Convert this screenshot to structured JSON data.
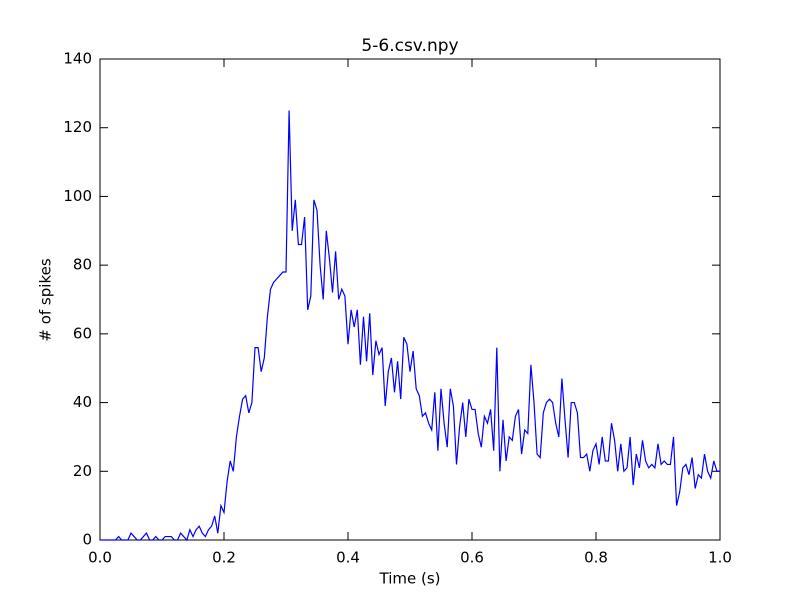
{
  "chart_data": {
    "type": "line",
    "title": "5-6.csv.npy",
    "xlabel": "Time (s)",
    "ylabel": "# of spikes",
    "x": [
      0,
      0.005,
      0.01,
      0.015,
      0.02,
      0.025,
      0.03,
      0.035,
      0.04,
      0.045,
      0.05,
      0.055,
      0.06,
      0.065,
      0.07,
      0.075,
      0.08,
      0.085,
      0.09,
      0.095,
      0.1,
      0.105,
      0.11,
      0.115,
      0.12,
      0.125,
      0.13,
      0.135,
      0.14,
      0.145,
      0.15,
      0.155,
      0.16,
      0.165,
      0.17,
      0.175,
      0.18,
      0.185,
      0.19,
      0.195,
      0.2,
      0.205,
      0.21,
      0.215,
      0.22,
      0.225,
      0.23,
      0.235,
      0.24,
      0.245,
      0.25,
      0.255,
      0.26,
      0.265,
      0.27,
      0.275,
      0.28,
      0.285,
      0.29,
      0.295,
      0.3,
      0.305,
      0.31,
      0.315,
      0.32,
      0.325,
      0.33,
      0.335,
      0.34,
      0.345,
      0.35,
      0.355,
      0.36,
      0.365,
      0.37,
      0.375,
      0.38,
      0.385,
      0.39,
      0.395,
      0.4,
      0.405,
      0.41,
      0.415,
      0.42,
      0.425,
      0.43,
      0.435,
      0.44,
      0.445,
      0.45,
      0.455,
      0.46,
      0.465,
      0.47,
      0.475,
      0.48,
      0.485,
      0.49,
      0.495,
      0.5,
      0.505,
      0.51,
      0.515,
      0.52,
      0.525,
      0.53,
      0.535,
      0.54,
      0.545,
      0.55,
      0.555,
      0.56,
      0.565,
      0.57,
      0.575,
      0.58,
      0.585,
      0.59,
      0.595,
      0.6,
      0.605,
      0.61,
      0.615,
      0.62,
      0.625,
      0.63,
      0.635,
      0.64,
      0.645,
      0.65,
      0.655,
      0.66,
      0.665,
      0.67,
      0.675,
      0.68,
      0.685,
      0.69,
      0.695,
      0.7,
      0.705,
      0.71,
      0.715,
      0.72,
      0.725,
      0.73,
      0.735,
      0.74,
      0.745,
      0.75,
      0.755,
      0.76,
      0.765,
      0.77,
      0.775,
      0.78,
      0.785,
      0.79,
      0.795,
      0.8,
      0.805,
      0.81,
      0.815,
      0.82,
      0.825,
      0.83,
      0.835,
      0.84,
      0.845,
      0.85,
      0.855,
      0.86,
      0.865,
      0.87,
      0.875,
      0.88,
      0.885,
      0.89,
      0.895,
      0.9,
      0.905,
      0.91,
      0.915,
      0.92,
      0.925,
      0.93,
      0.935,
      0.94,
      0.945,
      0.95,
      0.955,
      0.96,
      0.965,
      0.97,
      0.975,
      0.98,
      0.985,
      0.99,
      0.995,
      1
    ],
    "series": [
      {
        "color": "#0000ff",
        "values": [
          0,
          0,
          0,
          0,
          0,
          0,
          1,
          0,
          0,
          0,
          2,
          1,
          0,
          0,
          1,
          2,
          0,
          0,
          1,
          0,
          0,
          1,
          1,
          1,
          0,
          0,
          2,
          1,
          0,
          3,
          1,
          3,
          4,
          2,
          1,
          3,
          4,
          7,
          2,
          10,
          8,
          17,
          23,
          20,
          30,
          36,
          41,
          42,
          37,
          40,
          56,
          56,
          49,
          53,
          65,
          73,
          75,
          76,
          77,
          78,
          78,
          125,
          90,
          99,
          86,
          86,
          94,
          67,
          71,
          99,
          96,
          80,
          70,
          90,
          82,
          72,
          84,
          70,
          73,
          71,
          57,
          67,
          62,
          67,
          51,
          65,
          52,
          66,
          48,
          58,
          54,
          56,
          39,
          49,
          53,
          43,
          52,
          41,
          59,
          57,
          49,
          55,
          44,
          42,
          36,
          37,
          34,
          32,
          43,
          26,
          44,
          34,
          27,
          44,
          39,
          22,
          33,
          40,
          30,
          41,
          38,
          38,
          31,
          27,
          36,
          34,
          38,
          26,
          56,
          20,
          35,
          23,
          30,
          29,
          36,
          38,
          25,
          32,
          31,
          51,
          40,
          25,
          24,
          37,
          40,
          41,
          40,
          34,
          30,
          47,
          35,
          24,
          40,
          40,
          37,
          24,
          24,
          25,
          20,
          26,
          28,
          22,
          30,
          23,
          23,
          34,
          29,
          20,
          28,
          20,
          21,
          30,
          16,
          25,
          21,
          29,
          23,
          21,
          22,
          21,
          28,
          22,
          23,
          22,
          22,
          30,
          10,
          14,
          21,
          22,
          19,
          24,
          15,
          19,
          18,
          25,
          20,
          18,
          23,
          20,
          20
        ]
      }
    ],
    "xlim": [
      0,
      1
    ],
    "xticks": [
      {
        "value": 0,
        "label": "0.0"
      },
      0.2,
      0.4,
      0.6,
      0.8,
      {
        "value": 1,
        "label": "1.0"
      }
    ],
    "ylim": [
      0,
      140
    ],
    "yticks": [
      0,
      20,
      40,
      60,
      80,
      100,
      120,
      140
    ],
    "grid": false
  }
}
